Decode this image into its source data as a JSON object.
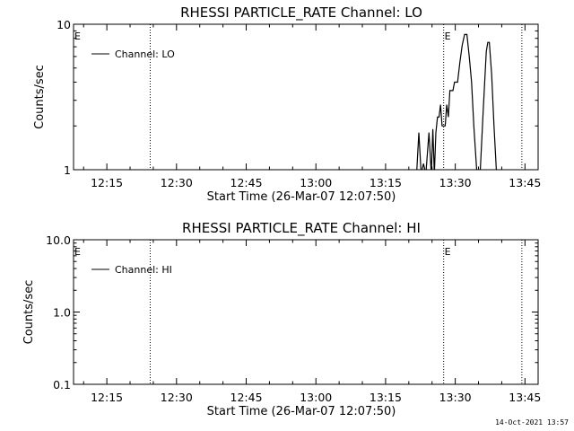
{
  "chart_data": [
    {
      "type": "line",
      "title": "RHESSI PARTICLE_RATE Channel: LO",
      "xlabel": "Start Time (26-Mar-07 12:07:50)",
      "ylabel": "Counts/sec",
      "yscale": "log",
      "ylim": [
        1,
        10
      ],
      "ytick_labels": [
        "1",
        "10"
      ],
      "ytick_values": [
        1,
        10
      ],
      "xlim": [
        "12:07:50",
        "13:47:50"
      ],
      "xtick_labels": [
        "12:15",
        "12:30",
        "12:45",
        "13:00",
        "13:15",
        "13:30",
        "13:45"
      ],
      "xtick_values": [
        "12:15",
        "12:30",
        "12:45",
        "13:00",
        "13:15",
        "13:30",
        "13:45"
      ],
      "legend": "top-left",
      "series": [
        {
          "name": "Channel: LO",
          "x": [
            "13:21:40",
            "13:22:10",
            "13:22:40",
            "13:23:10",
            "13:23:40",
            "13:24:20",
            "13:24:50",
            "13:25:10",
            "13:25:30",
            "13:25:50",
            "13:26:10",
            "13:26:30",
            "13:26:50",
            "13:27:10",
            "13:27:30",
            "13:27:50",
            "13:28:10",
            "13:28:30",
            "13:28:50",
            "13:29:10",
            "13:29:30",
            "13:29:50",
            "13:30:10",
            "13:30:30",
            "13:31:00",
            "13:31:30",
            "13:32:00",
            "13:32:30",
            "13:33:00",
            "13:33:30",
            "13:34:00",
            "13:34:40",
            "13:35:20",
            "13:36:00",
            "13:36:40",
            "13:37:00",
            "13:37:20",
            "13:37:50",
            "13:38:20",
            "13:38:50",
            "13:39:20"
          ],
          "y": [
            0.9,
            1.8,
            0.9,
            1.1,
            0.9,
            1.8,
            0.9,
            1.9,
            0.9,
            1.8,
            2.3,
            2.3,
            2.8,
            2.0,
            2.0,
            2.0,
            2.8,
            2.3,
            3.5,
            3.5,
            3.5,
            4.0,
            4.0,
            4.0,
            5.5,
            7.2,
            8.5,
            8.5,
            6.0,
            4.0,
            2.0,
            0.9,
            0.9,
            2.5,
            6.5,
            7.5,
            7.5,
            4.5,
            2.0,
            1.0,
            0.9
          ]
        }
      ],
      "annotations": [
        {
          "text": "E",
          "x": "12:07:50"
        },
        {
          "text": "E",
          "x": "13:27:30"
        }
      ],
      "vertical_lines": [
        "12:24:20",
        "13:27:30",
        "13:44:20"
      ]
    },
    {
      "type": "line",
      "title": "RHESSI PARTICLE_RATE Channel: HI",
      "xlabel": "Start Time (26-Mar-07 12:07:50)",
      "ylabel": "Counts/sec",
      "yscale": "log",
      "ylim": [
        0.1,
        10
      ],
      "ytick_labels": [
        "0.1",
        "1.0",
        "10.0"
      ],
      "ytick_values": [
        0.1,
        1,
        10
      ],
      "xlim": [
        "12:07:50",
        "13:47:50"
      ],
      "xtick_labels": [
        "12:15",
        "12:30",
        "12:45",
        "13:00",
        "13:15",
        "13:30",
        "13:45"
      ],
      "xtick_values": [
        "12:15",
        "12:30",
        "12:45",
        "13:00",
        "13:15",
        "13:30",
        "13:45"
      ],
      "legend": "top-left",
      "series": [
        {
          "name": "Channel: HI",
          "x": [],
          "y": []
        }
      ],
      "annotations": [
        {
          "text": "E",
          "x": "12:07:50"
        },
        {
          "text": "E",
          "x": "13:27:30"
        }
      ],
      "vertical_lines": [
        "12:24:20",
        "13:27:30",
        "13:44:20"
      ]
    }
  ],
  "footer": {
    "timestamp": "14-Oct-2021 13:57"
  }
}
